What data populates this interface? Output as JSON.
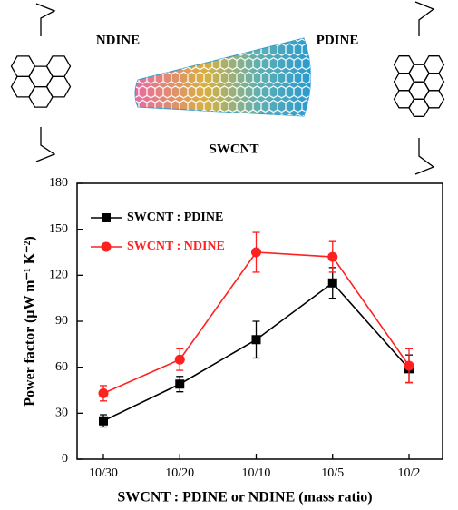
{
  "header": {
    "ndine": "NDINE",
    "pdine": "PDINE",
    "swcnt": "SWCNT"
  },
  "chart_data": {
    "type": "line",
    "xlabel": "SWCNT : PDINE or NDINE (mass ratio)",
    "ylabel": "Power factor (μW m⁻¹ K⁻²)",
    "categories": [
      "10/30",
      "10/20",
      "10/10",
      "10/5",
      "10/2"
    ],
    "series": [
      {
        "name": "SWCNT : PDINE",
        "color": "#000000",
        "marker": "square",
        "values": [
          25,
          49,
          78,
          115,
          59
        ],
        "errors": [
          4,
          5,
          12,
          10,
          9
        ]
      },
      {
        "name": "SWCNT : NDINE",
        "color": "#ff2020",
        "marker": "circle",
        "values": [
          43,
          65,
          135,
          132,
          61
        ],
        "errors": [
          5,
          7,
          13,
          10,
          11
        ]
      }
    ],
    "ylim": [
      0,
      180
    ],
    "yticks": [
      0,
      30,
      60,
      90,
      120,
      150,
      180
    ],
    "legend": "upper-left"
  }
}
